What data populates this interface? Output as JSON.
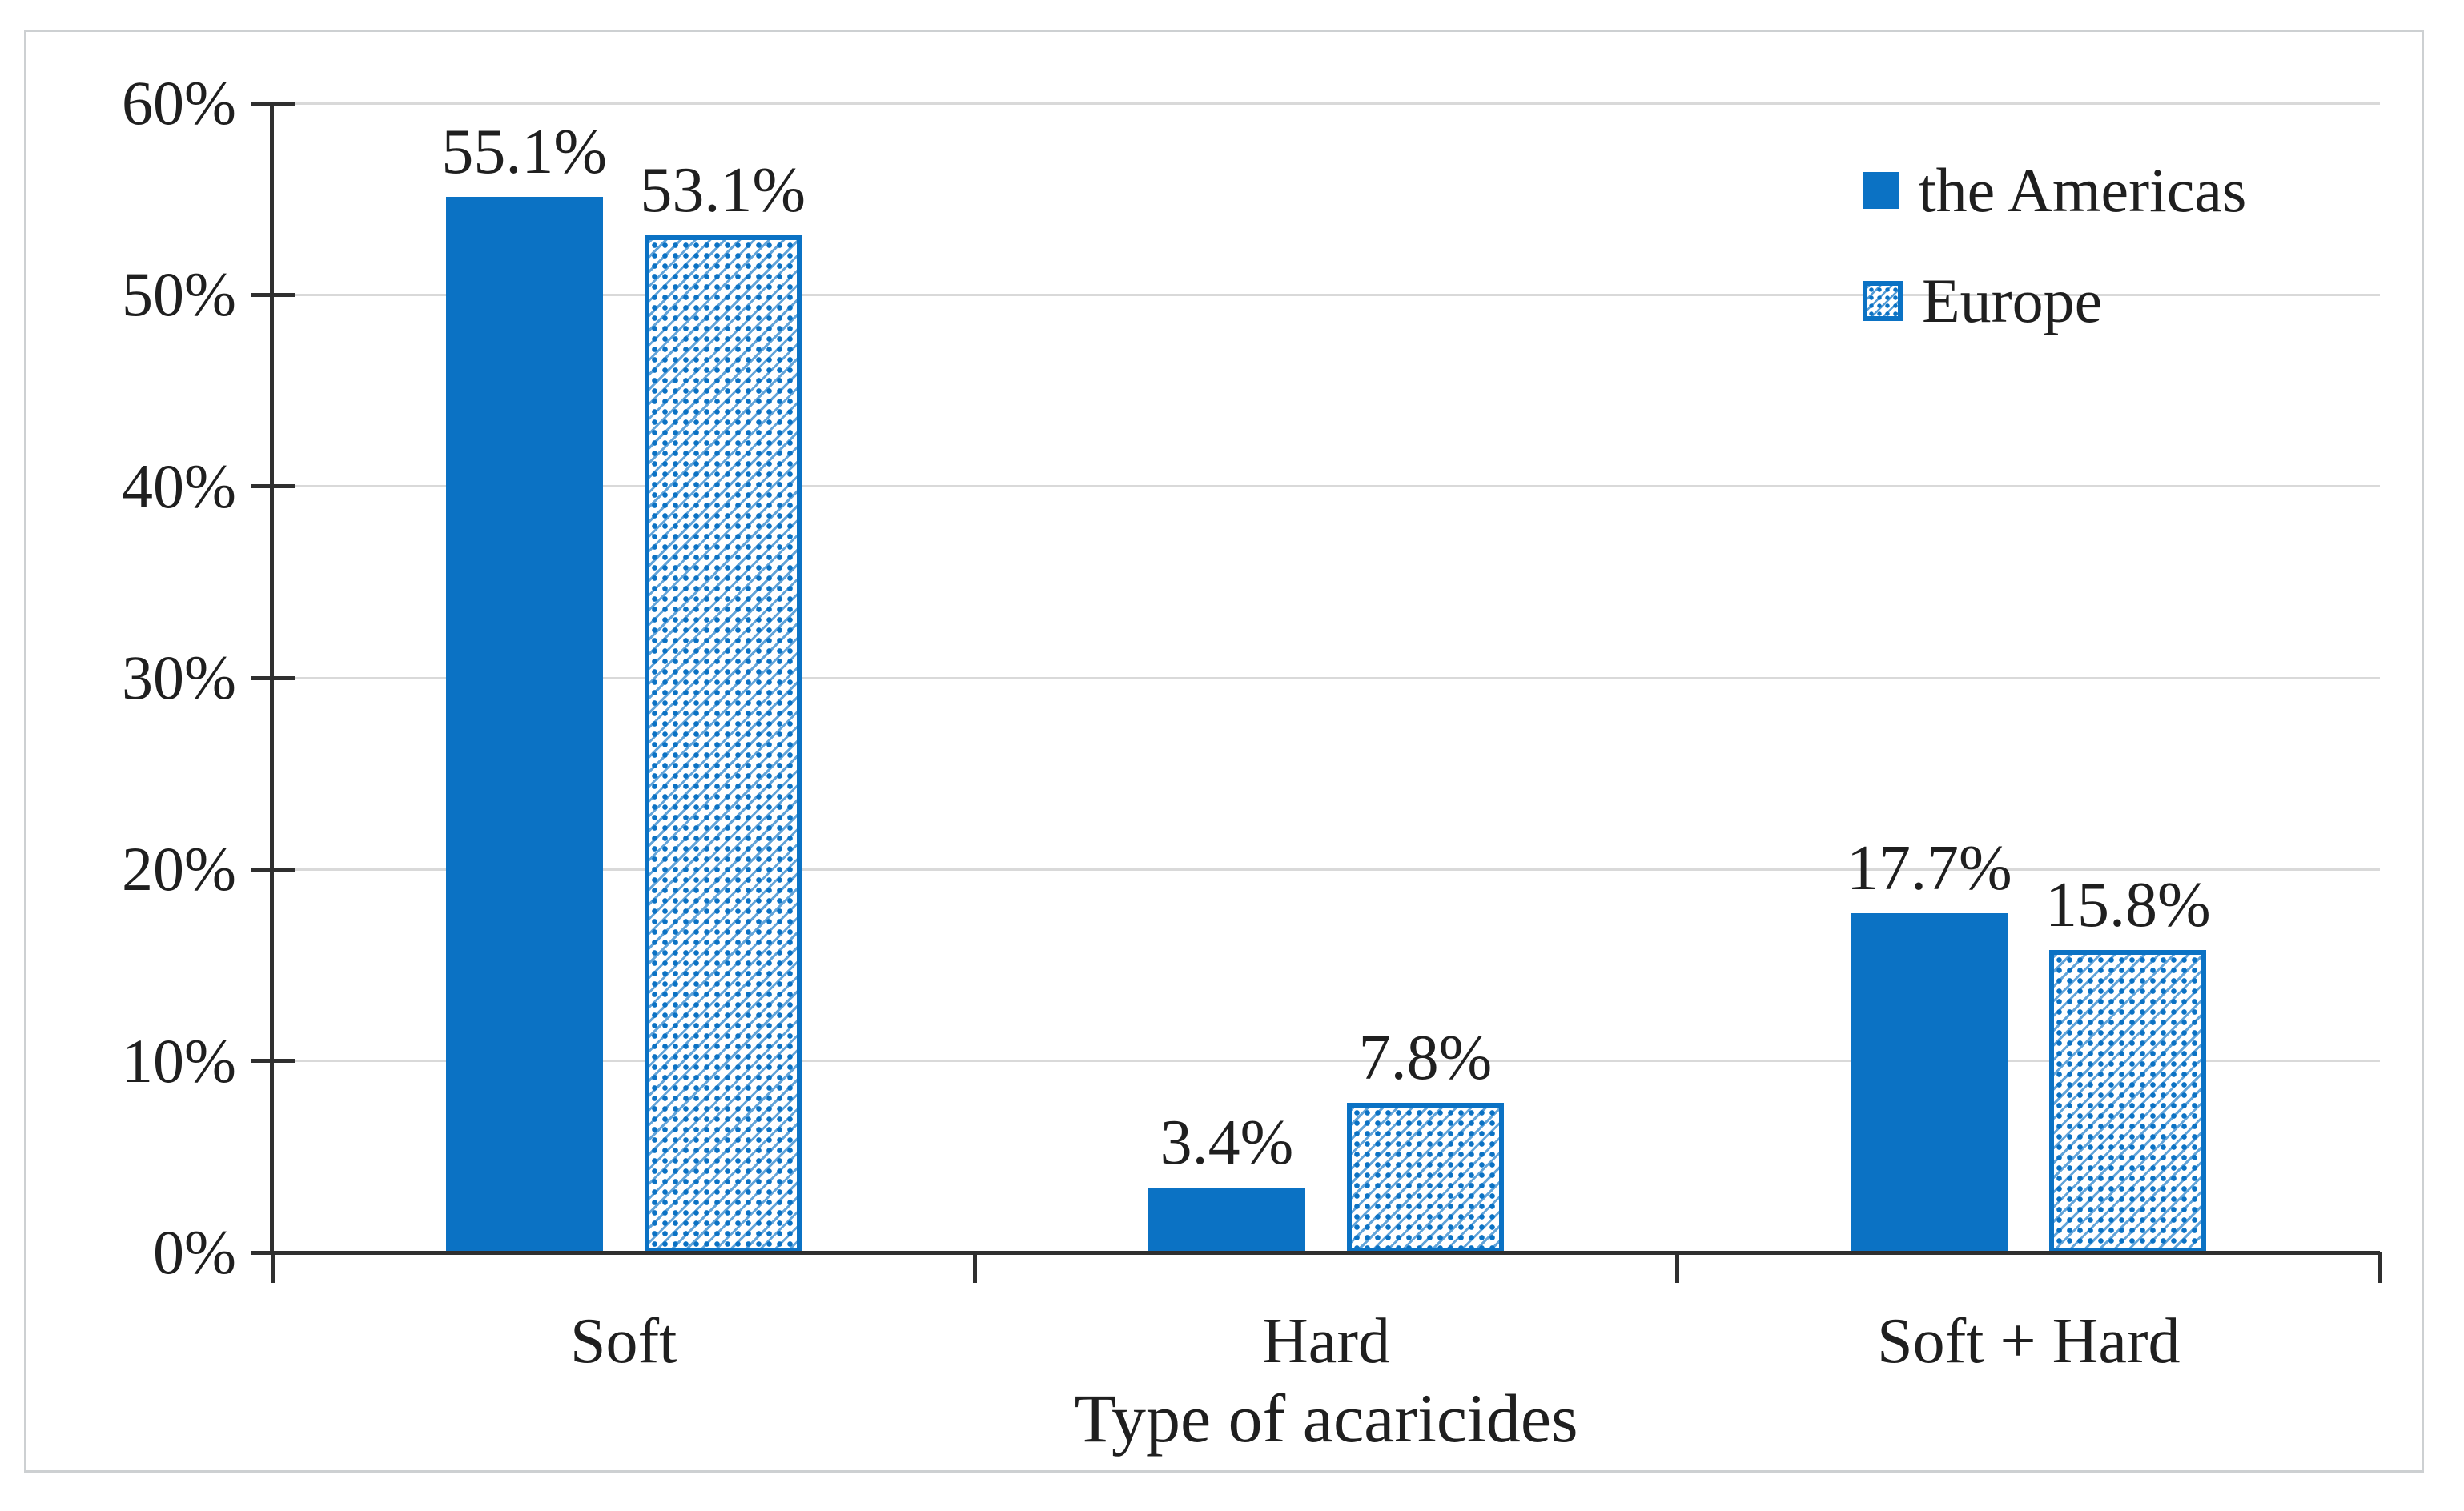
{
  "figure": {
    "background": "#ffffff",
    "frame_border_color": "#cdd0d2"
  },
  "chart_data": {
    "type": "bar",
    "title": "",
    "xlabel": "Type of acaricides",
    "ylabel": "",
    "categories": [
      "Soft",
      "Hard",
      "Soft + Hard"
    ],
    "series": [
      {
        "name": "the Americas",
        "pattern": "solid",
        "values": [
          55.1,
          3.4,
          17.7
        ],
        "data_labels": [
          "55.1%",
          "3.4%",
          "17.7%"
        ]
      },
      {
        "name": "Europe",
        "pattern": "hatched",
        "values": [
          53.1,
          7.8,
          15.8
        ],
        "data_labels": [
          "53.1%",
          "7.8%",
          "15.8%"
        ]
      }
    ],
    "ylim": [
      0,
      60
    ],
    "ytick_labels": [
      "0%",
      "10%",
      "20%",
      "30%",
      "40%",
      "50%",
      "60%"
    ],
    "grid": true,
    "legend_position": "top-right-inside",
    "colors": {
      "series_fill": "#0b72c4",
      "gridline": "#d9d9d9",
      "axis": "#2f2f2f",
      "text": "#1f1f1f"
    }
  }
}
